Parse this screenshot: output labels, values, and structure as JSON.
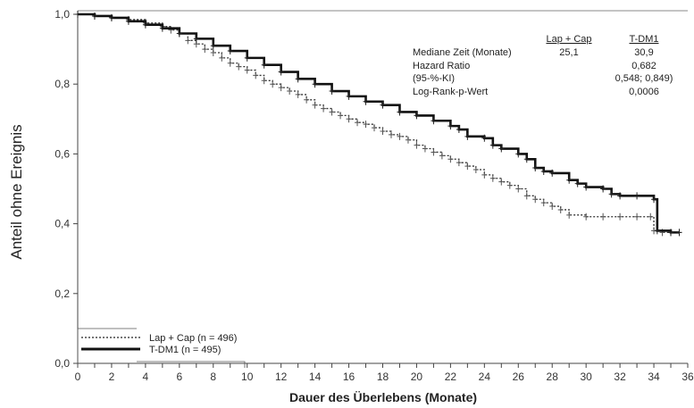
{
  "chart_data": {
    "type": "line",
    "subtype": "kaplan-meier",
    "xlabel": "Dauer des Überlebens (Monate)",
    "ylabel": "Anteil ohne Ereignis",
    "xlim": [
      0,
      36
    ],
    "ylim": [
      0,
      1
    ],
    "x_ticks": [
      0,
      1,
      2,
      3,
      4,
      5,
      6,
      7,
      8,
      9,
      10,
      11,
      12,
      13,
      14,
      15,
      16,
      17,
      18,
      19,
      20,
      21,
      22,
      23,
      24,
      25,
      26,
      27,
      28,
      29,
      30,
      31,
      32,
      33,
      34,
      35,
      36
    ],
    "x_tick_labels": [
      "0",
      "",
      "2",
      "",
      "4",
      "",
      "6",
      "",
      "8",
      "",
      "10",
      "",
      "12",
      "",
      "14",
      "",
      "16",
      "",
      "18",
      "",
      "20",
      "",
      "22",
      "",
      "24",
      "",
      "26",
      "",
      "28",
      "",
      "30",
      "",
      "32",
      "",
      "34",
      "",
      "36"
    ],
    "y_ticks": [
      0,
      0.2,
      0.4,
      0.6,
      0.8,
      1.0
    ],
    "y_tick_labels": [
      "0,0",
      "0,2",
      "0,4",
      "0,6",
      "0,8",
      "1,0"
    ],
    "grid": false,
    "legend": {
      "placement": "bottom-left",
      "entries": [
        {
          "label": "Lap + Cap (n = 496)",
          "style": "dotted"
        },
        {
          "label": "T-DM1 (n = 495)",
          "style": "solid-thick"
        }
      ]
    },
    "annotation_table": {
      "headers": [
        "",
        "Lap + Cap",
        "T-DM1"
      ],
      "rows": [
        [
          "Mediane Zeit (Monate)",
          "25,1",
          "30,9"
        ],
        [
          "Hazard Ratio",
          "",
          "0,682"
        ],
        [
          "(95-%-KI)",
          "",
          "0,548; 0,849)"
        ],
        [
          "Log-Rank-p-Wert",
          "",
          "0,0006"
        ]
      ]
    },
    "series": [
      {
        "name": "Lap + Cap (n = 496)",
        "style": "dotted",
        "x": [
          0,
          1,
          2,
          3,
          4,
          5,
          5.5,
          6,
          6.5,
          7,
          7.5,
          8,
          8.5,
          9,
          9.5,
          10,
          10.5,
          11,
          11.5,
          12,
          12.5,
          13,
          13.5,
          14,
          14.5,
          15,
          15.5,
          16,
          16.5,
          17,
          17.5,
          18,
          18.5,
          19,
          19.5,
          20,
          20.5,
          21,
          21.5,
          22,
          22.5,
          23,
          23.5,
          24,
          24.5,
          25,
          25.5,
          26,
          26.5,
          27,
          27.5,
          28,
          28.5,
          29,
          30,
          31,
          32,
          33,
          33.8,
          34,
          34.5,
          35,
          35.5
        ],
        "y": [
          1.0,
          0.995,
          0.99,
          0.985,
          0.975,
          0.965,
          0.955,
          0.945,
          0.925,
          0.915,
          0.9,
          0.89,
          0.875,
          0.86,
          0.85,
          0.84,
          0.825,
          0.81,
          0.8,
          0.79,
          0.78,
          0.77,
          0.755,
          0.74,
          0.73,
          0.72,
          0.71,
          0.7,
          0.69,
          0.685,
          0.675,
          0.665,
          0.655,
          0.65,
          0.64,
          0.625,
          0.615,
          0.605,
          0.595,
          0.585,
          0.575,
          0.565,
          0.555,
          0.54,
          0.53,
          0.52,
          0.51,
          0.5,
          0.48,
          0.47,
          0.46,
          0.45,
          0.44,
          0.425,
          0.42,
          0.42,
          0.42,
          0.42,
          0.42,
          0.38,
          0.375,
          0.375,
          0.375
        ]
      },
      {
        "name": "T-DM1 (n = 495)",
        "style": "solid-thick",
        "x": [
          0,
          1,
          2,
          3,
          4,
          5,
          6,
          7,
          8,
          9,
          10,
          11,
          12,
          13,
          14,
          15,
          16,
          17,
          18,
          19,
          20,
          21,
          22,
          22.5,
          23,
          24,
          24.5,
          25,
          26,
          26.5,
          27,
          27.5,
          28,
          29,
          29.5,
          30,
          31,
          31.5,
          32,
          33,
          34,
          34.2,
          35,
          35.5
        ],
        "y": [
          1.0,
          0.995,
          0.99,
          0.98,
          0.97,
          0.96,
          0.945,
          0.93,
          0.91,
          0.895,
          0.875,
          0.855,
          0.835,
          0.815,
          0.8,
          0.78,
          0.765,
          0.75,
          0.74,
          0.72,
          0.71,
          0.695,
          0.68,
          0.67,
          0.65,
          0.645,
          0.625,
          0.615,
          0.6,
          0.585,
          0.56,
          0.55,
          0.545,
          0.525,
          0.515,
          0.505,
          0.5,
          0.485,
          0.48,
          0.48,
          0.47,
          0.38,
          0.375,
          0.375
        ]
      }
    ]
  }
}
